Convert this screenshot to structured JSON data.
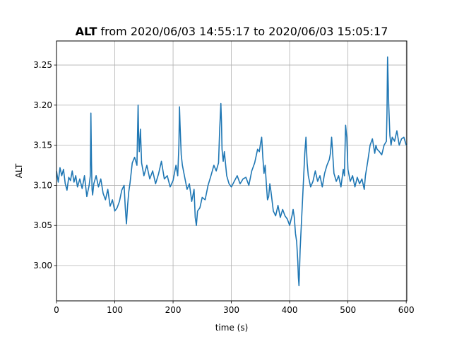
{
  "chart_data": {
    "type": "line",
    "title_bold": "ALT",
    "title_rest": " from 2020/06/03 14:55:17 to 2020/06/03 15:05:17",
    "xlabel": "time (s)",
    "ylabel": "ALT",
    "xlim": [
      0,
      601
    ],
    "ylim": [
      2.956,
      3.28
    ],
    "xticks": [
      0,
      100,
      200,
      300,
      400,
      500,
      600
    ],
    "yticks": [
      3.0,
      3.05,
      3.1,
      3.15,
      3.2,
      3.25
    ],
    "grid": true,
    "series_color": "#1f77b4",
    "series": [
      {
        "x": [
          0,
          3,
          6,
          9,
          12,
          15,
          18,
          21,
          24,
          27,
          30,
          33,
          36,
          40,
          44,
          48,
          52,
          56,
          58,
          59,
          60,
          61,
          62,
          64,
          68,
          72,
          76,
          80,
          84,
          88,
          92,
          96,
          100,
          104,
          108,
          112,
          116,
          118,
          120,
          122,
          124,
          126,
          130,
          134,
          138,
          140,
          141,
          142,
          144,
          146,
          150,
          155,
          160,
          165,
          170,
          175,
          180,
          185,
          190,
          195,
          200,
          205,
          208,
          210,
          211,
          212,
          214,
          216,
          220,
          224,
          228,
          232,
          236,
          238,
          240,
          242,
          246,
          250,
          255,
          260,
          265,
          270,
          274,
          278,
          280,
          282,
          283,
          284,
          286,
          288,
          292,
          296,
          300,
          305,
          310,
          315,
          320,
          325,
          330,
          335,
          340,
          345,
          348,
          350,
          352,
          354,
          356,
          358,
          360,
          362,
          364,
          366,
          368,
          372,
          376,
          380,
          384,
          388,
          392,
          396,
          400,
          404,
          406,
          408,
          410,
          412,
          414,
          415,
          416,
          417,
          418,
          420,
          422,
          424,
          426,
          428,
          430,
          432,
          436,
          440,
          444,
          448,
          452,
          456,
          460,
          464,
          468,
          470,
          472,
          474,
          476,
          480,
          484,
          488,
          492,
          494,
          495,
          496,
          498,
          500,
          504,
          508,
          512,
          516,
          520,
          524,
          528,
          530,
          534,
          538,
          542,
          546,
          548,
          550,
          554,
          558,
          562,
          566,
          567,
          568,
          570,
          572,
          574,
          576,
          580,
          584,
          588,
          592,
          596,
          600
        ],
        "y": [
          3.118,
          3.104,
          3.122,
          3.112,
          3.12,
          3.102,
          3.094,
          3.11,
          3.106,
          3.118,
          3.104,
          3.112,
          3.098,
          3.108,
          3.096,
          3.112,
          3.086,
          3.1,
          3.112,
          3.19,
          3.13,
          3.095,
          3.088,
          3.102,
          3.112,
          3.098,
          3.108,
          3.09,
          3.082,
          3.095,
          3.074,
          3.082,
          3.068,
          3.072,
          3.08,
          3.094,
          3.1,
          3.072,
          3.052,
          3.075,
          3.092,
          3.102,
          3.128,
          3.135,
          3.125,
          3.2,
          3.16,
          3.142,
          3.17,
          3.128,
          3.112,
          3.125,
          3.108,
          3.118,
          3.102,
          3.114,
          3.13,
          3.108,
          3.112,
          3.098,
          3.106,
          3.125,
          3.112,
          3.15,
          3.198,
          3.175,
          3.138,
          3.125,
          3.11,
          3.095,
          3.102,
          3.08,
          3.095,
          3.06,
          3.05,
          3.068,
          3.072,
          3.085,
          3.082,
          3.1,
          3.112,
          3.125,
          3.118,
          3.128,
          3.17,
          3.202,
          3.18,
          3.145,
          3.13,
          3.142,
          3.112,
          3.102,
          3.098,
          3.105,
          3.112,
          3.102,
          3.108,
          3.11,
          3.1,
          3.118,
          3.128,
          3.145,
          3.142,
          3.152,
          3.16,
          3.135,
          3.115,
          3.125,
          3.102,
          3.082,
          3.086,
          3.102,
          3.092,
          3.068,
          3.062,
          3.075,
          3.06,
          3.07,
          3.062,
          3.058,
          3.05,
          3.062,
          3.07,
          3.06,
          3.04,
          3.03,
          3.005,
          2.985,
          2.975,
          2.995,
          3.02,
          3.05,
          3.08,
          3.11,
          3.14,
          3.16,
          3.128,
          3.112,
          3.098,
          3.105,
          3.118,
          3.105,
          3.112,
          3.098,
          3.115,
          3.125,
          3.132,
          3.14,
          3.16,
          3.138,
          3.115,
          3.105,
          3.112,
          3.098,
          3.12,
          3.112,
          3.145,
          3.175,
          3.16,
          3.12,
          3.105,
          3.112,
          3.098,
          3.11,
          3.102,
          3.108,
          3.095,
          3.112,
          3.13,
          3.15,
          3.158,
          3.14,
          3.15,
          3.145,
          3.142,
          3.138,
          3.15,
          3.155,
          3.19,
          3.26,
          3.2,
          3.162,
          3.15,
          3.16,
          3.155,
          3.168,
          3.15,
          3.158,
          3.16,
          3.15
        ]
      }
    ]
  }
}
